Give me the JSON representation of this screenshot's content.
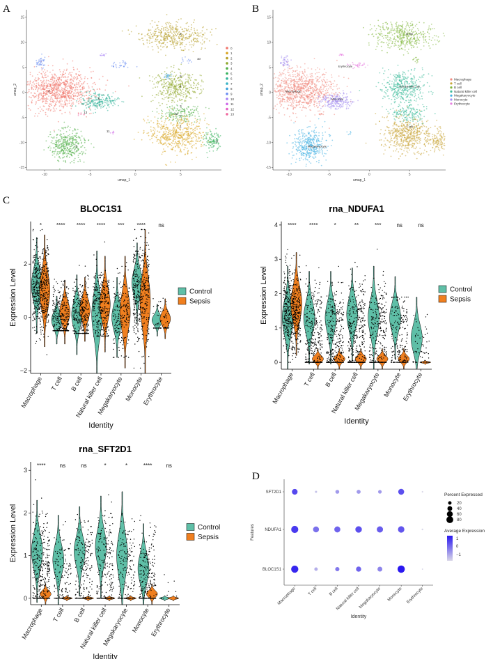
{
  "colors": {
    "control": "#5fbfa7",
    "sepsis": "#f07f1f",
    "umap": [
      "#f0766c",
      "#d9a521",
      "#b79f2a",
      "#8fa82c",
      "#53b04a",
      "#36b25c",
      "#35b49a",
      "#3ab4c5",
      "#3ca2dc",
      "#6d8ff2",
      "#a680f5",
      "#cd67e8",
      "#e45fc8",
      "#f06aa0"
    ],
    "celltype": [
      "#f08a80",
      "#c9a437",
      "#80b63a",
      "#3dbb9a",
      "#47b3e3",
      "#a48ef1",
      "#e87ee0"
    ],
    "dot_low": "#d9d7e8",
    "dot_high": "#2a18f0"
  },
  "panels": {
    "a": "A",
    "b": "B",
    "c": "C",
    "d": "D"
  },
  "chart_data": [
    {
      "id": "umap-clusters",
      "type": "scatter",
      "xlabel": "umap_1",
      "ylabel": "umap_2",
      "xticks": [
        -10,
        -5,
        0,
        5
      ],
      "yticks": [
        15,
        10,
        5,
        0,
        -5,
        -10,
        -15
      ],
      "xlim": [
        -12,
        9.5
      ],
      "ylim": [
        -15.5,
        16.5
      ],
      "clusters": [
        {
          "label": "0",
          "x": -9.5,
          "y": 0
        },
        {
          "label": "1",
          "x": 5,
          "y": -7
        },
        {
          "label": "2",
          "x": 5,
          "y": 11.5
        },
        {
          "label": "3",
          "x": 5,
          "y": -3
        },
        {
          "label": "4",
          "x": 5,
          "y": 1
        },
        {
          "label": "5",
          "x": -6.5,
          "y": -11
        },
        {
          "label": "6",
          "x": -4,
          "y": -1.5
        },
        {
          "label": "7",
          "x": 5,
          "y": -5
        },
        {
          "label": "8",
          "x": 9,
          "y": -10
        },
        {
          "label": "9",
          "x": 5,
          "y": 3
        },
        {
          "label": "10",
          "x": 7,
          "y": 6.5
        },
        {
          "label": "11",
          "x": -3,
          "y": -8
        },
        {
          "label": "12",
          "x": 4.5,
          "y": -4.5
        },
        {
          "label": "13",
          "x": -5.5,
          "y": -4.2
        }
      ],
      "legend": [
        "0",
        "1",
        "2",
        "3",
        "4",
        "5",
        "6",
        "7",
        "8",
        "9",
        "10",
        "11",
        "12",
        "13"
      ]
    },
    {
      "id": "umap-celltypes",
      "type": "scatter",
      "xlabel": "umap_1",
      "ylabel": "umap_2",
      "xticks": [
        -10,
        -5,
        0,
        5
      ],
      "yticks": [
        15,
        10,
        5,
        0,
        -5,
        -10,
        -15
      ],
      "labels": [
        {
          "label": "Macrophage",
          "x": -9.5,
          "y": 0
        },
        {
          "label": "Monocyte",
          "x": -4,
          "y": -1.5
        },
        {
          "label": "Megakaryocyte",
          "x": -6.5,
          "y": -11
        },
        {
          "label": "Erythrocyte",
          "x": -3,
          "y": 5
        },
        {
          "label": "Natural killer cell",
          "x": 5,
          "y": 1
        },
        {
          "label": "B cell",
          "x": 5,
          "y": 11.5
        },
        {
          "label": "T cell",
          "x": 5,
          "y": -7
        }
      ],
      "legend": [
        "Macrophage",
        "T cell",
        "B cell",
        "Natural killer cell",
        "Megakaryocyte",
        "Monocyte",
        "Erythrocyte"
      ]
    },
    {
      "id": "violin-bloc1s1",
      "type": "violin",
      "title": "BLOC1S1",
      "xlabel": "Identity",
      "ylabel": "Expression Level",
      "ylim": [
        -2.1,
        3.6
      ],
      "yticks": [
        -2,
        0,
        2
      ],
      "categories": [
        "Macrophage",
        "T cell",
        "B cell",
        "Natural killer cell",
        "Megakaryocyte",
        "Monocyte",
        "Erythrocyte"
      ],
      "significance": [
        "*",
        "****",
        "****",
        "****",
        "***",
        "****",
        "ns"
      ],
      "legend": [
        "Control",
        "Sepsis"
      ]
    },
    {
      "id": "violin-ndufa1",
      "type": "violin",
      "title": "rna_NDUFA1",
      "xlabel": "Identity",
      "ylabel": "Expression Level",
      "ylim": [
        -0.2,
        4.1
      ],
      "yticks": [
        0,
        1,
        2,
        3,
        4
      ],
      "categories": [
        "Macrophage",
        "T cell",
        "B cell",
        "Natural killer cell",
        "Megakaryocyte",
        "Monocyte",
        "Erythrocyte"
      ],
      "significance": [
        "****",
        "****",
        "*",
        "**",
        "***",
        "ns",
        "ns"
      ],
      "legend": [
        "Control",
        "Sepsis"
      ]
    },
    {
      "id": "violin-sft2d1",
      "type": "violin",
      "title": "rna_SFT2D1",
      "xlabel": "Identity",
      "ylabel": "Expression Level",
      "ylim": [
        -0.15,
        3.2
      ],
      "yticks": [
        0,
        1,
        2,
        3
      ],
      "categories": [
        "Macrophage",
        "T cell",
        "B cell",
        "Natural killer cell",
        "Megakaryocyte",
        "Monocyte",
        "Erythrocyte"
      ],
      "significance": [
        "****",
        "ns",
        "ns",
        "*",
        "*",
        "****",
        "ns"
      ],
      "legend": [
        "Control",
        "Sepsis"
      ]
    },
    {
      "id": "dotplot",
      "type": "dot",
      "xlabel": "Identity",
      "ylabel": "Features",
      "categories": [
        "Macrophage",
        "T cell",
        "B cell",
        "Natural killer cell",
        "Megakaryocyte",
        "Monocyte",
        "Erythrocyte"
      ],
      "features": [
        "SFT2D1",
        "NDUFA1",
        "BLOC1S1"
      ],
      "percent": [
        [
          55,
          8,
          25,
          28,
          22,
          60,
          4
        ],
        [
          85,
          60,
          62,
          72,
          66,
          70,
          5
        ],
        [
          88,
          20,
          30,
          45,
          40,
          90,
          3
        ]
      ],
      "avg": [
        [
          0.6,
          -1.2,
          -0.6,
          -0.6,
          -0.6,
          0.5,
          -1.5
        ],
        [
          0.8,
          0.0,
          0.2,
          0.5,
          0.3,
          0.4,
          -1.5
        ],
        [
          1.1,
          -0.9,
          -0.1,
          0.2,
          -0.3,
          1.3,
          -1.5
        ]
      ],
      "size_legend_title": "Percent Expressed",
      "size_legend": [
        "20",
        "40",
        "60",
        "80"
      ],
      "size_legend_values": [
        20,
        40,
        60,
        80
      ],
      "color_legend_title": "Average Expression",
      "color_legend": [
        "1",
        "0",
        "−1"
      ]
    }
  ]
}
